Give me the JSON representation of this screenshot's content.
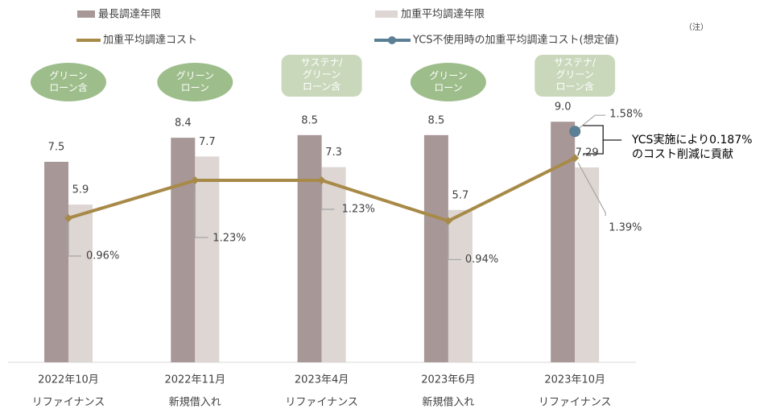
{
  "chart_data": {
    "type": "bar",
    "categories": [
      [
        "2022年10月",
        "リファイナンス"
      ],
      [
        "2022年11月",
        "新規借入れ"
      ],
      [
        "2023年4月",
        "リファイナンス"
      ],
      [
        "2023年6月",
        "新規借入れ"
      ],
      [
        "2023年10月",
        "リファイナンス"
      ]
    ],
    "ylim": [
      0,
      10
    ],
    "y2lim": [
      -0.07,
      1.84
    ],
    "series": [
      {
        "name": "最長調達年限",
        "type": "bar",
        "color": "#a89797",
        "values": [
          7.5,
          8.4,
          8.5,
          8.5,
          9.0
        ],
        "value_labels": [
          "7.5",
          "8.4",
          "8.5",
          "8.5",
          "9.0"
        ]
      },
      {
        "name": "加重平均調達年限",
        "type": "bar",
        "color": "#ddd6d3",
        "values": [
          5.9,
          7.7,
          7.3,
          5.7,
          7.29
        ]
      },
      {
        "name": "加重平均調達コスト",
        "type": "line",
        "axis": "y2",
        "color": "#a88a48",
        "values": [
          0.96,
          1.23,
          1.23,
          0.94,
          1.39
        ],
        "value_labels": [
          "0.96%",
          "1.23%",
          "1.23%",
          "0.94%",
          "1.39%"
        ]
      },
      {
        "name": "YCS不使用時の加重平均調達コスト(想定値)",
        "type": "point",
        "axis": "y2",
        "color": "#5b7f95",
        "values": [
          null,
          null,
          null,
          null,
          1.58
        ],
        "value_labels": [
          null,
          null,
          null,
          null,
          "1.58%"
        ]
      }
    ],
    "badges": [
      {
        "shape": "ellipse",
        "lines": [
          "グリーン",
          "ローン含"
        ]
      },
      {
        "shape": "ellipse",
        "lines": [
          "グリーン",
          "ローン"
        ]
      },
      {
        "shape": "rect",
        "lines": [
          "サステナ/",
          "グリーン",
          "ローン含"
        ]
      },
      {
        "shape": "ellipse",
        "lines": [
          "グリーン",
          "ローン"
        ]
      },
      {
        "shape": "rect",
        "lines": [
          "サステナ/",
          "グリーン",
          "ローン含"
        ]
      }
    ],
    "annotation": [
      "YCS実施により0.187%",
      "のコスト削減に貢献"
    ],
    "note": "（注）"
  }
}
